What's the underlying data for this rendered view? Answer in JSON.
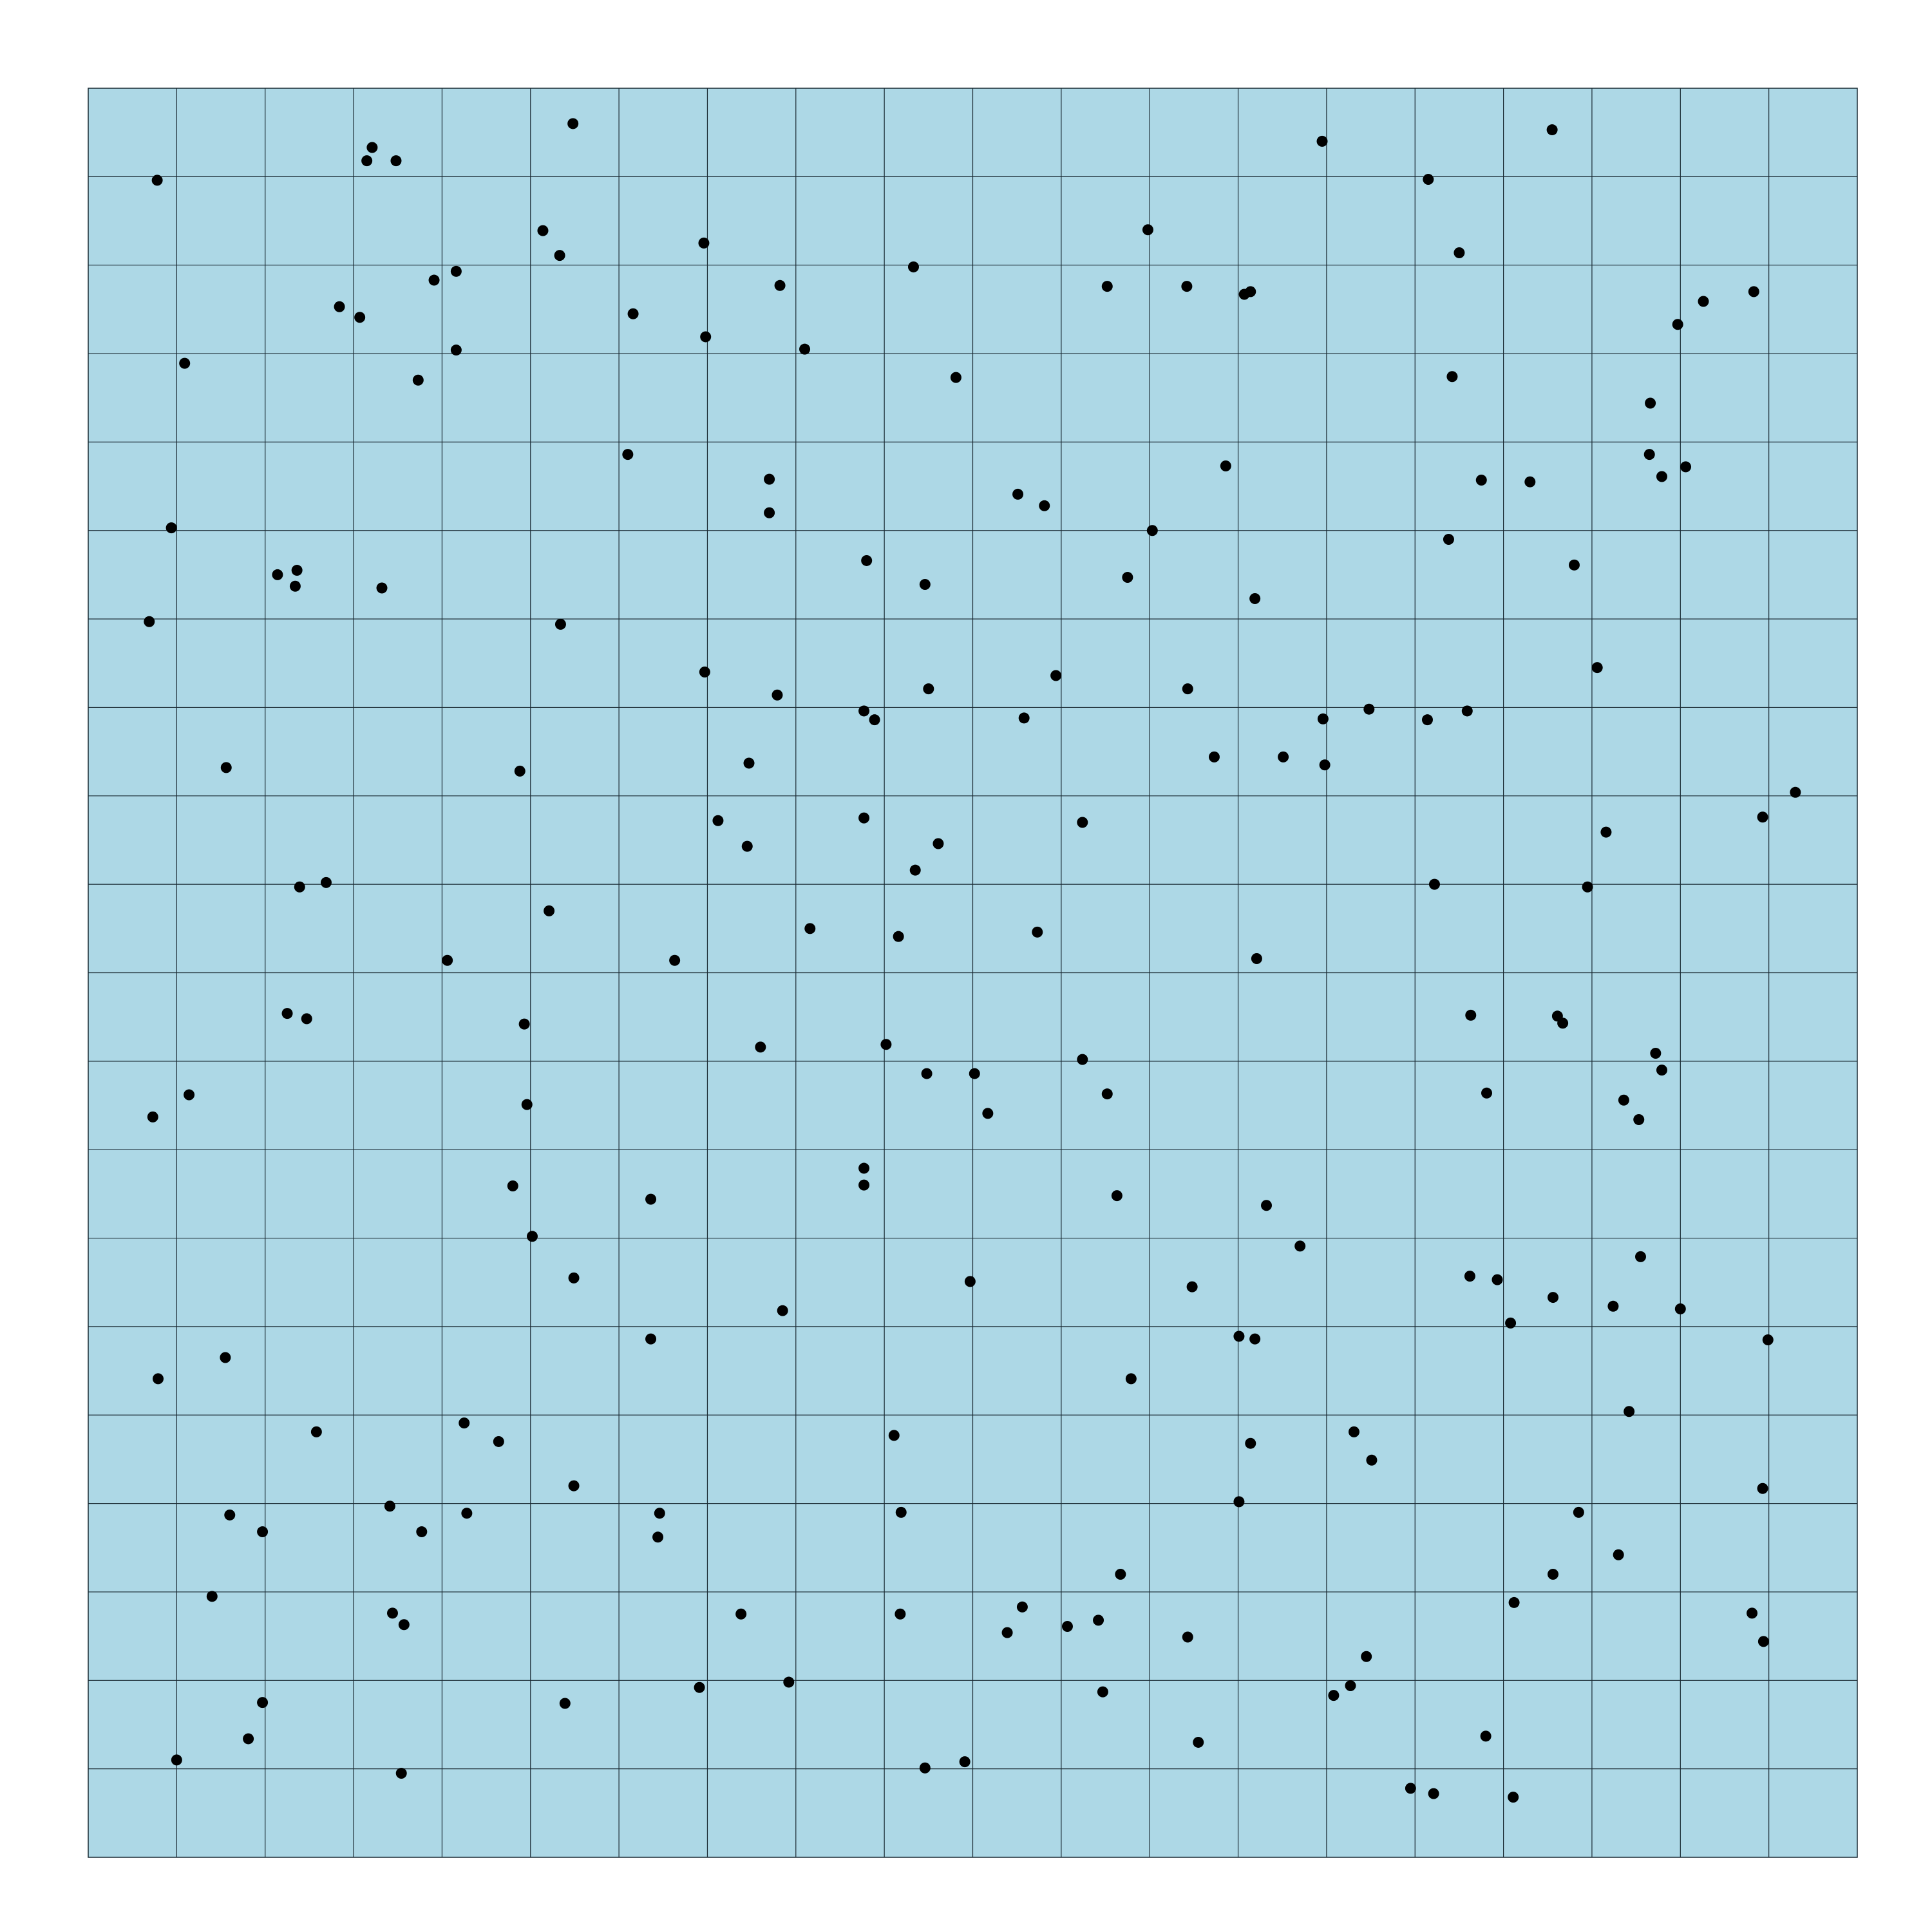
{
  "chart_data": {
    "type": "scatter",
    "title": "",
    "xlabel": "",
    "ylabel": "",
    "xlim": [
      0,
      20
    ],
    "ylim": [
      0,
      20
    ],
    "grid": true,
    "legend": "none",
    "colors": {
      "background": "#add8e6",
      "point": "#000000",
      "grid": "#1a2a33"
    },
    "points": [
      [
        0.78,
        18.96
      ],
      [
        3.21,
        19.33
      ],
      [
        3.15,
        19.18
      ],
      [
        3.48,
        19.18
      ],
      [
        5.48,
        19.6
      ],
      [
        13.95,
        19.4
      ],
      [
        16.55,
        19.53
      ],
      [
        15.15,
        18.97
      ],
      [
        5.14,
        18.39
      ],
      [
        5.33,
        18.11
      ],
      [
        6.96,
        18.25
      ],
      [
        11.98,
        18.4
      ],
      [
        15.5,
        18.14
      ],
      [
        4.16,
        17.93
      ],
      [
        3.91,
        17.83
      ],
      [
        9.33,
        17.98
      ],
      [
        7.82,
        17.77
      ],
      [
        11.52,
        17.76
      ],
      [
        12.42,
        17.76
      ],
      [
        13.14,
        17.7
      ],
      [
        13.07,
        17.67
      ],
      [
        2.84,
        17.53
      ],
      [
        3.07,
        17.41
      ],
      [
        6.16,
        17.45
      ],
      [
        6.98,
        17.19
      ],
      [
        8.1,
        17.05
      ],
      [
        4.16,
        17.04
      ],
      [
        1.09,
        16.89
      ],
      [
        18.26,
        17.59
      ],
      [
        17.97,
        17.33
      ],
      [
        18.83,
        17.7
      ],
      [
        3.73,
        16.7
      ],
      [
        9.81,
        16.73
      ],
      [
        15.42,
        16.74
      ],
      [
        17.66,
        16.44
      ],
      [
        6.1,
        15.86
      ],
      [
        12.86,
        15.73
      ],
      [
        17.65,
        15.86
      ],
      [
        17.79,
        15.61
      ],
      [
        18.06,
        15.72
      ],
      [
        7.7,
        15.58
      ],
      [
        7.7,
        15.2
      ],
      [
        15.75,
        15.57
      ],
      [
        16.3,
        15.55
      ],
      [
        10.51,
        15.41
      ],
      [
        10.81,
        15.28
      ],
      [
        0.94,
        15.03
      ],
      [
        12.03,
        15.0
      ],
      [
        15.38,
        14.9
      ],
      [
        2.14,
        14.5
      ],
      [
        2.36,
        14.55
      ],
      [
        2.34,
        14.37
      ],
      [
        8.8,
        14.66
      ],
      [
        3.32,
        14.35
      ],
      [
        11.75,
        14.47
      ],
      [
        9.46,
        14.39
      ],
      [
        16.8,
        14.61
      ],
      [
        13.19,
        14.23
      ],
      [
        0.69,
        13.97
      ],
      [
        5.34,
        13.94
      ],
      [
        7.79,
        13.14
      ],
      [
        6.97,
        13.4
      ],
      [
        17.06,
        13.45
      ],
      [
        9.5,
        13.21
      ],
      [
        10.94,
        13.36
      ],
      [
        12.43,
        13.21
      ],
      [
        8.77,
        12.96
      ],
      [
        8.89,
        12.86
      ],
      [
        10.58,
        12.88
      ],
      [
        13.96,
        12.87
      ],
      [
        14.48,
        12.98
      ],
      [
        15.59,
        12.96
      ],
      [
        15.14,
        12.86
      ],
      [
        1.56,
        12.32
      ],
      [
        4.88,
        12.28
      ],
      [
        7.47,
        12.37
      ],
      [
        12.73,
        12.44
      ],
      [
        13.51,
        12.44
      ],
      [
        13.98,
        12.35
      ],
      [
        19.3,
        12.04
      ],
      [
        8.77,
        11.75
      ],
      [
        7.12,
        11.72
      ],
      [
        7.45,
        11.43
      ],
      [
        11.24,
        11.7
      ],
      [
        9.61,
        11.46
      ],
      [
        18.93,
        11.76
      ],
      [
        17.16,
        11.59
      ],
      [
        9.35,
        11.16
      ],
      [
        2.39,
        10.97
      ],
      [
        2.69,
        11.02
      ],
      [
        5.21,
        10.7
      ],
      [
        15.22,
        11.0
      ],
      [
        16.95,
        10.97
      ],
      [
        4.06,
        10.14
      ],
      [
        8.16,
        10.5
      ],
      [
        6.63,
        10.14
      ],
      [
        13.21,
        10.16
      ],
      [
        10.73,
        10.46
      ],
      [
        9.16,
        10.41
      ],
      [
        2.25,
        9.54
      ],
      [
        2.47,
        9.48
      ],
      [
        4.93,
        9.42
      ],
      [
        7.6,
        9.16
      ],
      [
        9.02,
        9.19
      ],
      [
        9.48,
        8.86
      ],
      [
        11.24,
        9.02
      ],
      [
        15.63,
        9.52
      ],
      [
        16.61,
        9.51
      ],
      [
        16.67,
        9.43
      ],
      [
        17.72,
        9.09
      ],
      [
        17.79,
        8.9
      ],
      [
        0.73,
        8.37
      ],
      [
        1.14,
        8.62
      ],
      [
        4.96,
        8.51
      ],
      [
        10.02,
        8.86
      ],
      [
        11.52,
        8.63
      ],
      [
        10.17,
        8.41
      ],
      [
        15.81,
        8.64
      ],
      [
        17.36,
        8.56
      ],
      [
        17.53,
        8.34
      ],
      [
        4.8,
        7.59
      ],
      [
        8.77,
        7.79
      ],
      [
        8.77,
        7.6
      ],
      [
        11.63,
        7.48
      ],
      [
        6.36,
        7.44
      ],
      [
        13.32,
        7.37
      ],
      [
        5.02,
        7.02
      ],
      [
        13.7,
        6.91
      ],
      [
        5.49,
        6.55
      ],
      [
        7.85,
        6.18
      ],
      [
        9.97,
        6.51
      ],
      [
        15.62,
        6.57
      ],
      [
        12.48,
        6.45
      ],
      [
        17.55,
        6.79
      ],
      [
        16.56,
        6.33
      ],
      [
        15.93,
        6.53
      ],
      [
        17.24,
        6.23
      ],
      [
        18.0,
        6.2
      ],
      [
        16.08,
        6.04
      ],
      [
        6.36,
        5.86
      ],
      [
        18.99,
        5.85
      ],
      [
        0.79,
        5.41
      ],
      [
        13.01,
        5.89
      ],
      [
        13.19,
        5.86
      ],
      [
        1.55,
        5.65
      ],
      [
        11.79,
        5.41
      ],
      [
        17.42,
        5.04
      ],
      [
        2.58,
        4.81
      ],
      [
        4.25,
        4.91
      ],
      [
        4.64,
        4.7
      ],
      [
        9.11,
        4.77
      ],
      [
        13.14,
        4.68
      ],
      [
        14.31,
        4.81
      ],
      [
        14.51,
        4.49
      ],
      [
        18.93,
        4.17
      ],
      [
        1.6,
        3.87
      ],
      [
        1.97,
        3.68
      ],
      [
        3.41,
        3.97
      ],
      [
        5.49,
        4.2
      ],
      [
        4.28,
        3.89
      ],
      [
        3.77,
        3.68
      ],
      [
        6.46,
        3.89
      ],
      [
        9.19,
        3.9
      ],
      [
        6.44,
        3.62
      ],
      [
        13.01,
        4.02
      ],
      [
        16.85,
        3.9
      ],
      [
        17.3,
        3.42
      ],
      [
        16.56,
        3.2
      ],
      [
        11.67,
        3.2
      ],
      [
        1.4,
        2.95
      ],
      [
        3.44,
        2.76
      ],
      [
        3.57,
        2.63
      ],
      [
        7.38,
        2.75
      ],
      [
        9.18,
        2.75
      ],
      [
        10.56,
        2.83
      ],
      [
        11.07,
        2.61
      ],
      [
        11.42,
        2.68
      ],
      [
        12.43,
        2.49
      ],
      [
        10.39,
        2.54
      ],
      [
        16.12,
        2.88
      ],
      [
        18.81,
        2.76
      ],
      [
        18.94,
        2.44
      ],
      [
        1.97,
        1.75
      ],
      [
        5.39,
        1.74
      ],
      [
        6.91,
        1.92
      ],
      [
        7.92,
        1.98
      ],
      [
        11.47,
        1.87
      ],
      [
        14.45,
        2.27
      ],
      [
        14.27,
        1.94
      ],
      [
        14.08,
        1.83
      ],
      [
        12.55,
        1.3
      ],
      [
        15.8,
        1.37
      ],
      [
        1.0,
        1.1
      ],
      [
        3.54,
        0.95
      ],
      [
        9.46,
        1.01
      ],
      [
        9.91,
        1.08
      ],
      [
        14.95,
        0.78
      ],
      [
        15.21,
        0.72
      ],
      [
        16.11,
        0.68
      ],
      [
        1.81,
        1.34
      ]
    ]
  }
}
